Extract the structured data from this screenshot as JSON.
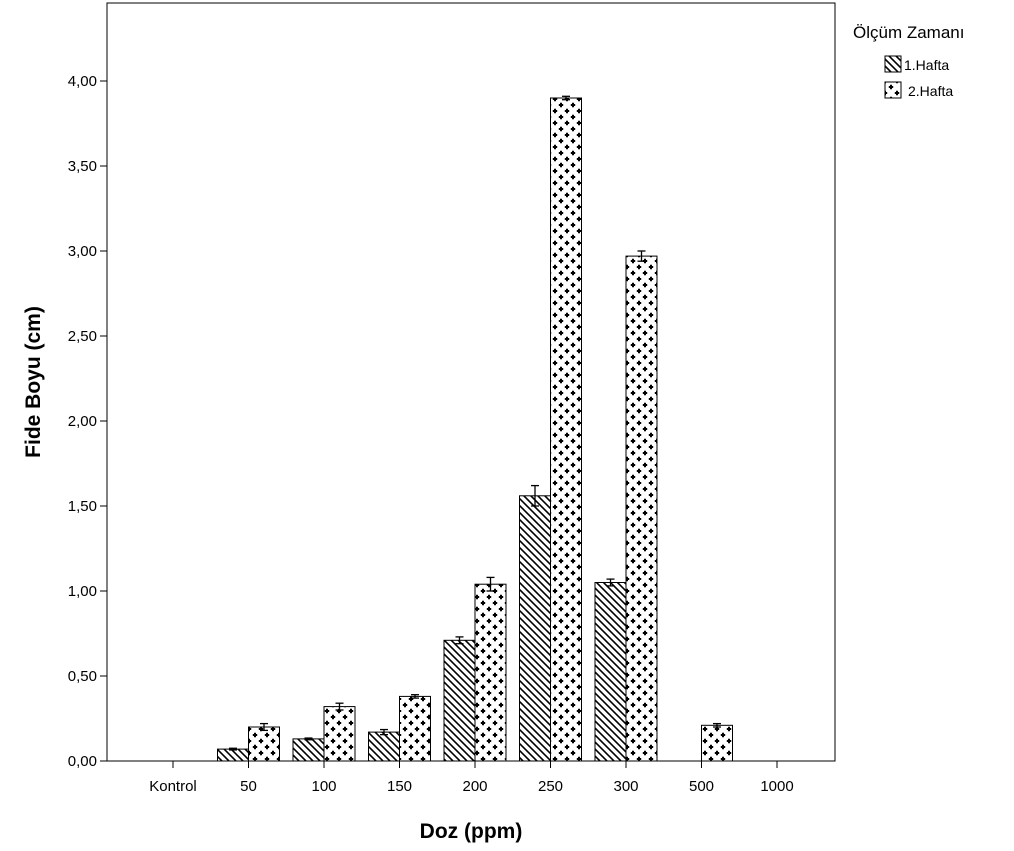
{
  "chart_data": {
    "type": "bar",
    "xlabel": "Doz (ppm)",
    "ylabel": "Fide Boyu (cm)",
    "ylim": [
      0,
      4.4
    ],
    "yticks": [
      "0,00",
      "0,50",
      "1,00",
      "1,50",
      "2,00",
      "2,50",
      "3,00",
      "3,50",
      "4,00"
    ],
    "yticks_values": [
      0,
      0.5,
      1.0,
      1.5,
      2.0,
      2.5,
      3.0,
      3.5,
      4.0
    ],
    "categories": [
      "Kontrol",
      "50",
      "100",
      "150",
      "200",
      "250",
      "300",
      "500",
      "1000"
    ],
    "legend": {
      "title": "Ölçüm Zamanı",
      "placement": "top-right"
    },
    "series": [
      {
        "name": "1.Hafta",
        "pattern": "diagonal-hatch",
        "values": [
          0,
          0.07,
          0.13,
          0.17,
          0.71,
          1.56,
          1.05,
          0,
          0
        ],
        "errors": [
          0,
          0.005,
          0.005,
          0.015,
          0.02,
          0.06,
          0.02,
          0,
          0
        ]
      },
      {
        "name": "2.Hafta",
        "pattern": "plus-dots",
        "values": [
          0,
          0.2,
          0.32,
          0.38,
          1.04,
          3.9,
          2.97,
          0.21,
          0
        ],
        "errors": [
          0,
          0.02,
          0.02,
          0.01,
          0.04,
          0.01,
          0.03,
          0.01,
          0
        ]
      }
    ],
    "grid": false
  }
}
